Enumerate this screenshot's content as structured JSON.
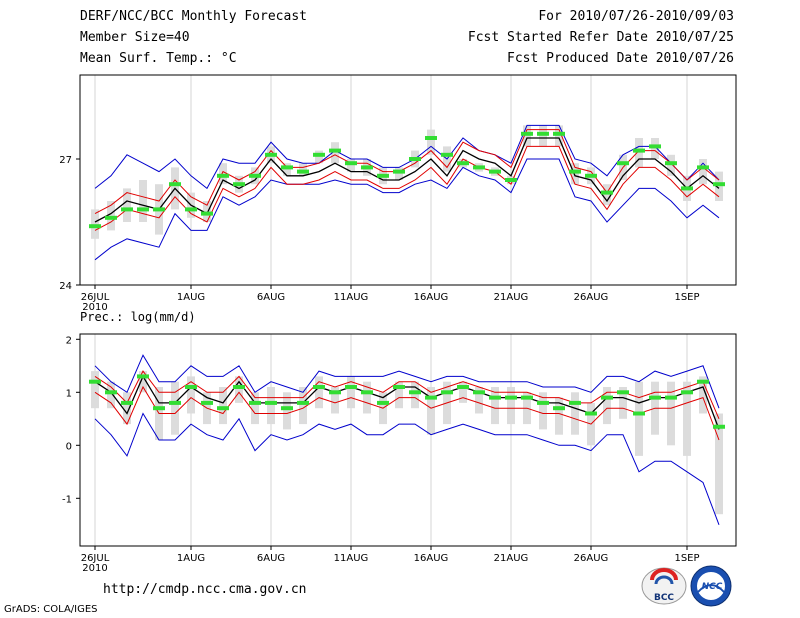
{
  "header": {
    "title": "DERF/NCC/BCC Monthly Forecast",
    "member_size": "Member Size=40",
    "variable": "Mean Surf. Temp.: °C",
    "period": "For 2010/07/26-2010/09/03",
    "fcst_started": "Fcst Started Refer Date 2010/07/25",
    "fcst_produced": "Fcst Produced Date 2010/07/26"
  },
  "footer": {
    "url": "http://cmdp.ncc.cma.gov.cn",
    "credit": "GrADS: COLA/IGES",
    "logo_bcc": "BCC",
    "logo_ncc": "NCC"
  },
  "colors": {
    "mean": "#000000",
    "spread": "#e00000",
    "envelope": "#0000cc",
    "obs_bar": "#dcdcdc",
    "marker": "#33dd33"
  },
  "chart_data": [
    {
      "type": "line",
      "title": "Mean Surf. Temp.: °C",
      "ylim": [
        24,
        29
      ],
      "yticks": [
        24,
        27
      ],
      "x_ticks": [
        "26JUL",
        "1AUG",
        "6AUG",
        "11AUG",
        "16AUG",
        "21AUG",
        "26AUG",
        "1SEP"
      ],
      "x_tick_days": [
        1,
        7,
        12,
        17,
        22,
        27,
        32,
        38
      ],
      "x_year_label": "2010",
      "days": 40,
      "mean": [
        25.5,
        25.7,
        26.0,
        25.9,
        25.8,
        26.3,
        25.9,
        25.7,
        26.5,
        26.3,
        26.5,
        27.0,
        26.6,
        26.6,
        26.7,
        26.9,
        26.7,
        26.7,
        26.5,
        26.5,
        26.7,
        27.0,
        26.6,
        27.2,
        27.0,
        26.9,
        26.6,
        27.5,
        27.5,
        27.5,
        26.6,
        26.5,
        26.0,
        26.6,
        27.0,
        27.0,
        26.7,
        26.3,
        26.6,
        26.3
      ],
      "upper": [
        25.7,
        25.9,
        26.2,
        26.1,
        26.0,
        26.5,
        26.1,
        25.9,
        26.7,
        26.5,
        26.7,
        27.2,
        26.8,
        26.8,
        26.9,
        27.1,
        26.9,
        26.9,
        26.7,
        26.7,
        26.9,
        27.2,
        26.8,
        27.4,
        27.2,
        27.1,
        26.8,
        27.7,
        27.7,
        27.7,
        26.8,
        26.7,
        26.2,
        26.8,
        27.2,
        27.2,
        26.9,
        26.5,
        26.8,
        26.5
      ],
      "lower": [
        25.3,
        25.5,
        25.8,
        25.7,
        25.6,
        26.1,
        25.7,
        25.5,
        26.3,
        26.1,
        26.3,
        26.8,
        26.4,
        26.4,
        26.5,
        26.7,
        26.5,
        26.5,
        26.3,
        26.3,
        26.5,
        26.8,
        26.4,
        27.0,
        26.8,
        26.7,
        26.4,
        27.3,
        27.3,
        27.3,
        26.4,
        26.3,
        25.8,
        26.4,
        26.8,
        26.8,
        26.5,
        26.1,
        26.4,
        26.1
      ],
      "env_max": [
        26.3,
        26.6,
        27.1,
        26.9,
        26.7,
        27.0,
        26.6,
        26.3,
        27.0,
        26.9,
        26.9,
        27.4,
        27.0,
        26.9,
        26.9,
        27.2,
        27.0,
        27.0,
        26.8,
        26.8,
        27.0,
        27.3,
        27.0,
        27.5,
        27.2,
        27.1,
        26.9,
        27.8,
        27.8,
        27.8,
        27.0,
        26.9,
        26.6,
        27.1,
        27.3,
        27.3,
        26.9,
        26.5,
        26.9,
        26.5
      ],
      "env_min": [
        24.6,
        24.9,
        25.1,
        25.0,
        24.9,
        25.7,
        25.3,
        25.3,
        26.1,
        25.9,
        26.1,
        26.5,
        26.4,
        26.4,
        26.4,
        26.5,
        26.4,
        26.4,
        26.2,
        26.2,
        26.4,
        26.5,
        26.3,
        26.8,
        26.6,
        26.5,
        26.2,
        27.0,
        27.0,
        27.0,
        26.1,
        26.0,
        25.5,
        25.9,
        26.3,
        26.3,
        26.0,
        25.6,
        25.9,
        25.6
      ],
      "obs": [
        25.4,
        25.6,
        25.8,
        25.8,
        25.8,
        26.4,
        25.8,
        25.7,
        26.6,
        26.4,
        26.6,
        27.1,
        26.8,
        26.7,
        27.1,
        27.2,
        26.9,
        26.8,
        26.6,
        26.7,
        27.0,
        27.5,
        27.1,
        26.9,
        26.8,
        26.7,
        26.5,
        27.6,
        27.6,
        27.6,
        26.7,
        26.6,
        26.2,
        26.9,
        27.2,
        27.3,
        26.9,
        26.3,
        26.8,
        26.4
      ],
      "bar_high": [
        25.8,
        26.0,
        26.3,
        26.5,
        26.4,
        26.8,
        26.2,
        26.0,
        26.9,
        26.6,
        26.8,
        27.3,
        26.9,
        26.9,
        27.2,
        27.4,
        27.0,
        27.0,
        26.8,
        26.8,
        27.2,
        27.7,
        27.3,
        27.0,
        26.9,
        26.8,
        26.6,
        27.8,
        27.8,
        27.8,
        26.9,
        26.8,
        26.4,
        27.1,
        27.5,
        27.5,
        27.1,
        26.6,
        27.0,
        26.7
      ],
      "bar_low": [
        25.1,
        25.3,
        25.5,
        25.5,
        25.2,
        25.8,
        25.6,
        25.5,
        26.4,
        26.2,
        26.4,
        26.9,
        26.6,
        26.6,
        26.9,
        26.9,
        26.7,
        26.6,
        26.4,
        26.5,
        26.8,
        27.1,
        26.7,
        26.8,
        26.7,
        26.6,
        26.4,
        27.3,
        27.3,
        27.3,
        26.4,
        26.4,
        25.9,
        26.5,
        26.8,
        27.0,
        26.6,
        26.0,
        26.4,
        26.0
      ]
    },
    {
      "type": "line",
      "title": "Prec.: log(mm/d)",
      "ylim": [
        -1.9,
        2.1
      ],
      "yticks": [
        -1,
        0,
        1,
        2
      ],
      "x_ticks": [
        "26JUL",
        "1AUG",
        "6AUG",
        "11AUG",
        "16AUG",
        "21AUG",
        "26AUG",
        "1SEP"
      ],
      "x_tick_days": [
        1,
        7,
        12,
        17,
        22,
        27,
        32,
        38
      ],
      "x_year_label": "2010",
      "days": 40,
      "mean": [
        1.2,
        1.0,
        0.6,
        1.3,
        0.8,
        0.8,
        1.1,
        0.9,
        0.8,
        1.2,
        0.8,
        0.8,
        0.8,
        0.8,
        1.1,
        1.0,
        1.1,
        1.0,
        0.9,
        1.1,
        1.1,
        0.9,
        1.0,
        1.1,
        1.0,
        0.9,
        0.9,
        0.9,
        0.8,
        0.8,
        0.7,
        0.6,
        0.9,
        0.9,
        0.8,
        0.9,
        0.9,
        1.0,
        1.1,
        0.3
      ],
      "upper": [
        1.3,
        1.1,
        0.8,
        1.4,
        1.0,
        1.0,
        1.2,
        1.0,
        1.0,
        1.3,
        0.9,
        0.9,
        0.9,
        0.9,
        1.2,
        1.1,
        1.2,
        1.1,
        1.0,
        1.2,
        1.2,
        1.0,
        1.1,
        1.2,
        1.1,
        1.0,
        1.0,
        1.0,
        0.9,
        0.9,
        0.8,
        0.8,
        1.0,
        1.0,
        0.9,
        1.0,
        1.0,
        1.1,
        1.2,
        0.5
      ],
      "lower": [
        1.0,
        0.8,
        0.4,
        1.1,
        0.6,
        0.6,
        0.9,
        0.7,
        0.6,
        1.0,
        0.6,
        0.6,
        0.6,
        0.7,
        0.9,
        0.8,
        0.9,
        0.8,
        0.7,
        0.9,
        0.9,
        0.7,
        0.8,
        0.9,
        0.8,
        0.7,
        0.7,
        0.7,
        0.6,
        0.6,
        0.5,
        0.4,
        0.7,
        0.7,
        0.6,
        0.7,
        0.7,
        0.8,
        0.9,
        0.1
      ],
      "env_max": [
        1.5,
        1.2,
        1.0,
        1.7,
        1.2,
        1.2,
        1.5,
        1.3,
        1.3,
        1.5,
        1.0,
        1.2,
        1.1,
        1.0,
        1.4,
        1.3,
        1.3,
        1.3,
        1.3,
        1.4,
        1.3,
        1.2,
        1.3,
        1.3,
        1.2,
        1.2,
        1.2,
        1.2,
        1.1,
        1.1,
        1.1,
        1.0,
        1.3,
        1.3,
        1.2,
        1.4,
        1.3,
        1.4,
        1.5,
        0.7
      ],
      "env_min": [
        0.5,
        0.2,
        -0.2,
        0.6,
        0.1,
        0.1,
        0.4,
        0.2,
        0.1,
        0.5,
        -0.1,
        0.2,
        0.1,
        0.2,
        0.4,
        0.3,
        0.4,
        0.2,
        0.2,
        0.4,
        0.4,
        0.2,
        0.3,
        0.4,
        0.3,
        0.2,
        0.2,
        0.2,
        0.1,
        0.0,
        0.0,
        -0.1,
        0.2,
        0.2,
        -0.5,
        -0.3,
        -0.3,
        -0.5,
        -0.7,
        -1.5
      ],
      "obs": [
        1.2,
        1.0,
        0.8,
        1.3,
        0.7,
        0.8,
        1.1,
        0.8,
        0.7,
        1.1,
        0.8,
        0.8,
        0.7,
        0.8,
        1.1,
        1.0,
        1.1,
        1.0,
        0.8,
        1.1,
        1.0,
        0.9,
        1.0,
        1.1,
        1.0,
        0.9,
        0.9,
        0.9,
        0.8,
        0.7,
        0.8,
        0.6,
        0.9,
        1.0,
        0.6,
        0.9,
        0.9,
        1.0,
        1.2,
        0.35
      ],
      "bar_high": [
        1.4,
        1.2,
        1.0,
        1.4,
        1.1,
        1.2,
        1.3,
        1.0,
        1.1,
        1.3,
        1.0,
        1.1,
        1.0,
        1.1,
        1.3,
        1.1,
        1.3,
        1.2,
        1.0,
        1.2,
        1.2,
        1.1,
        1.2,
        1.2,
        1.1,
        1.1,
        1.1,
        1.0,
        1.0,
        0.9,
        1.0,
        0.8,
        1.1,
        1.1,
        1.2,
        1.2,
        1.2,
        1.2,
        1.3,
        0.6
      ],
      "bar_low": [
        0.7,
        0.7,
        0.4,
        1.0,
        0.1,
        0.2,
        0.6,
        0.4,
        0.4,
        0.8,
        0.4,
        0.4,
        0.3,
        0.4,
        0.7,
        0.6,
        0.7,
        0.6,
        0.4,
        0.7,
        0.7,
        0.2,
        0.4,
        0.8,
        0.6,
        0.4,
        0.4,
        0.4,
        0.3,
        0.2,
        0.2,
        0.0,
        0.4,
        0.5,
        -0.2,
        0.2,
        0.0,
        -0.2,
        0.6,
        -1.3
      ]
    }
  ]
}
